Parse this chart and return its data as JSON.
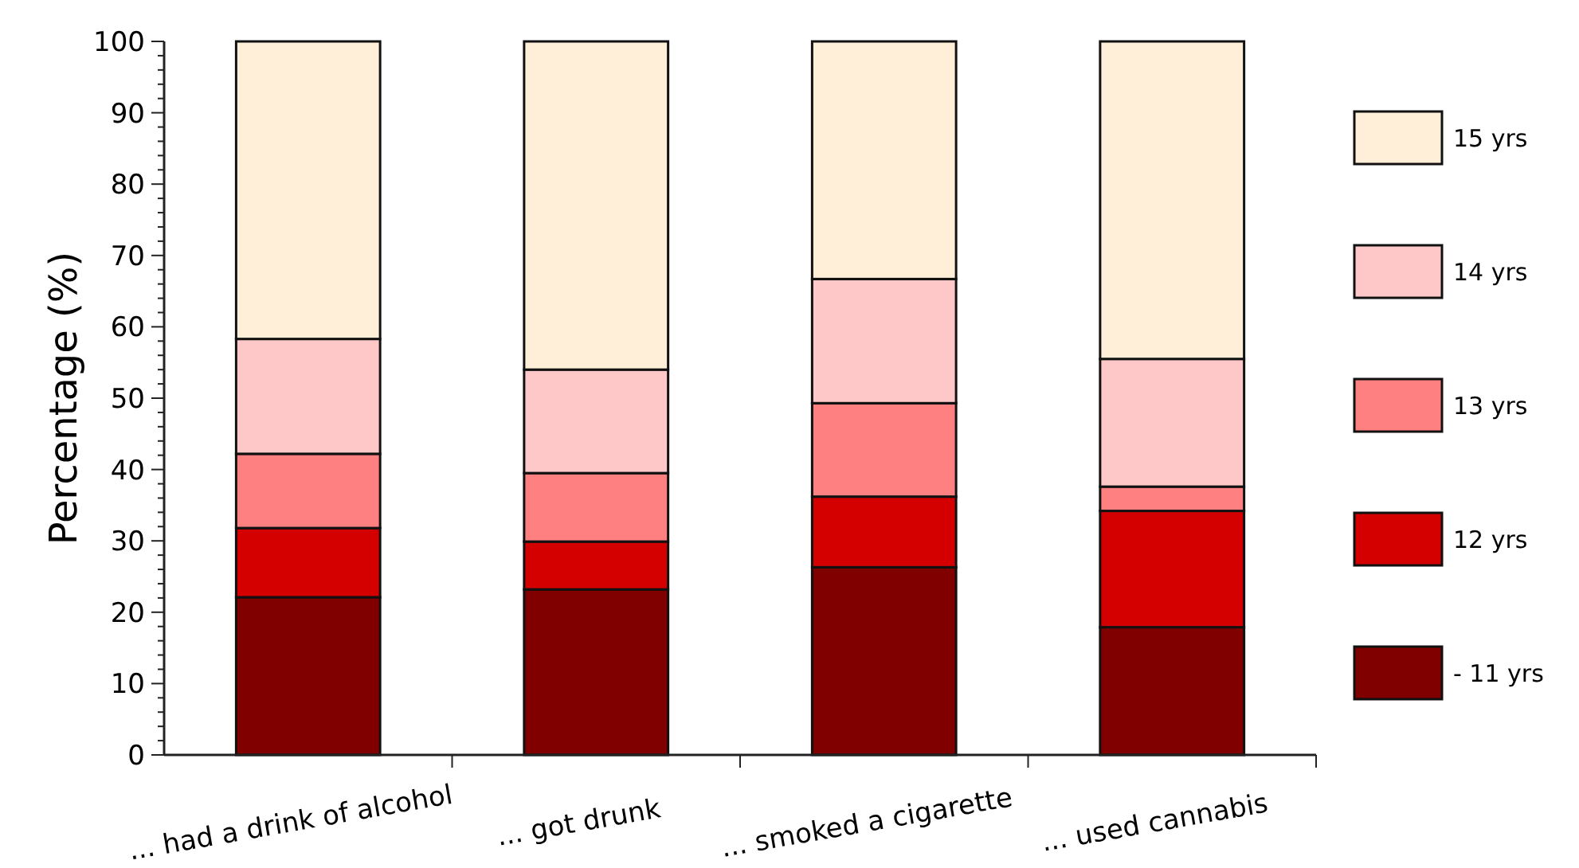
{
  "chart_data": {
    "type": "bar",
    "stacked": true,
    "ylabel": "Percentage (%)",
    "categories": [
      "... had a drink of alcohol",
      "... got drunk",
      "... smoked a cigarette",
      "... used cannabis"
    ],
    "series": [
      {
        "name": "- 11 yrs",
        "color": "#800000",
        "values": [
          22.1,
          23.2,
          26.3,
          17.9
        ]
      },
      {
        "name": "12 yrs",
        "color": "#d40000",
        "values": [
          9.7,
          6.7,
          9.9,
          16.3
        ]
      },
      {
        "name": "13 yrs",
        "color": "#ff8080",
        "values": [
          10.4,
          9.6,
          13.1,
          3.4
        ]
      },
      {
        "name": "14 yrs",
        "color": "#ffc8c8",
        "values": [
          16.1,
          14.5,
          17.4,
          17.9
        ]
      },
      {
        "name": "15 yrs",
        "color": "#ffeed8",
        "values": [
          41.7,
          46.0,
          33.3,
          44.5
        ]
      }
    ],
    "ylim": [
      0,
      100
    ],
    "yticks": [
      0,
      {
        "value": 2,
        "label": null
      },
      {
        "value": 4,
        "label": null
      },
      {
        "value": 6,
        "label": null
      },
      {
        "value": 8,
        "label": null
      },
      10,
      {
        "value": 12,
        "label": null
      },
      {
        "value": 14,
        "label": null
      },
      {
        "value": 16,
        "label": null
      },
      {
        "value": 18,
        "label": null
      },
      20,
      {
        "value": 22,
        "label": null
      },
      {
        "value": 24,
        "label": null
      },
      {
        "value": 26,
        "label": null
      },
      {
        "value": 28,
        "label": null
      },
      30,
      {
        "value": 32,
        "label": null
      },
      {
        "value": 34,
        "label": null
      },
      {
        "value": 36,
        "label": null
      },
      {
        "value": 38,
        "label": null
      },
      40,
      {
        "value": 42,
        "label": null
      },
      {
        "value": 44,
        "label": null
      },
      {
        "value": 46,
        "label": null
      },
      {
        "value": 48,
        "label": null
      },
      50,
      {
        "value": 52,
        "label": null
      },
      {
        "value": 54,
        "label": null
      },
      {
        "value": 56,
        "label": null
      },
      {
        "value": 58,
        "label": null
      },
      60,
      {
        "value": 62,
        "label": null
      },
      {
        "value": 64,
        "label": null
      },
      {
        "value": 66,
        "label": null
      },
      {
        "value": 68,
        "label": null
      },
      70,
      {
        "value": 72,
        "label": null
      },
      {
        "value": 74,
        "label": null
      },
      {
        "value": 76,
        "label": null
      },
      {
        "value": 78,
        "label": null
      },
      80,
      {
        "value": 82,
        "label": null
      },
      {
        "value": 84,
        "label": null
      },
      {
        "value": 86,
        "label": null
      },
      {
        "value": 88,
        "label": null
      },
      90,
      {
        "value": 92,
        "label": null
      },
      {
        "value": 94,
        "label": null
      },
      {
        "value": 96,
        "label": null
      },
      {
        "value": 98,
        "label": null
      },
      100
    ],
    "grid": false,
    "legend": "right"
  }
}
